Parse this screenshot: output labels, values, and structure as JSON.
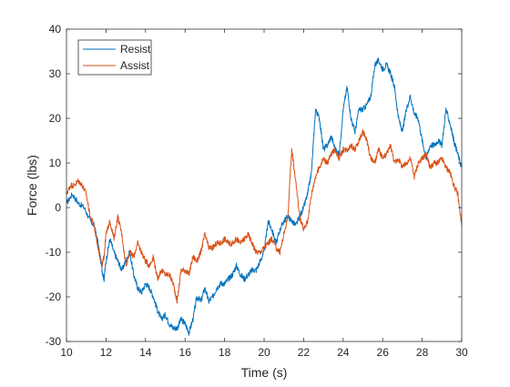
{
  "chart_data": {
    "type": "line",
    "xlabel": "Time (s)",
    "ylabel": "Force (lbs)",
    "xlim": [
      10,
      30
    ],
    "ylim": [
      -30,
      40
    ],
    "xticks": [
      10,
      12,
      14,
      16,
      18,
      20,
      22,
      24,
      26,
      28,
      30
    ],
    "yticks": [
      -30,
      -20,
      -10,
      0,
      10,
      20,
      30,
      40
    ],
    "grid": false,
    "legend": {
      "placement": "top-left"
    },
    "series": [
      {
        "name": "Resist",
        "color": "#0072BD",
        "x": [
          10.0,
          10.3,
          10.6,
          10.9,
          11.2,
          11.4,
          11.6,
          11.8,
          11.9,
          12.0,
          12.2,
          12.4,
          12.6,
          12.8,
          13.0,
          13.2,
          13.4,
          13.6,
          13.8,
          14.0,
          14.2,
          14.4,
          14.6,
          14.8,
          15.0,
          15.2,
          15.4,
          15.6,
          15.8,
          16.0,
          16.2,
          16.4,
          16.6,
          16.8,
          17.0,
          17.2,
          17.4,
          17.6,
          17.8,
          18.0,
          18.2,
          18.4,
          18.6,
          18.8,
          19.0,
          19.2,
          19.4,
          19.6,
          19.8,
          20.0,
          20.2,
          20.4,
          20.6,
          20.8,
          21.0,
          21.2,
          21.4,
          21.6,
          21.8,
          22.0,
          22.2,
          22.4,
          22.6,
          22.8,
          23.0,
          23.2,
          23.4,
          23.6,
          23.8,
          24.0,
          24.2,
          24.4,
          24.6,
          24.8,
          25.0,
          25.2,
          25.4,
          25.6,
          25.8,
          26.0,
          26.2,
          26.4,
          26.6,
          26.8,
          27.0,
          27.2,
          27.4,
          27.6,
          27.8,
          28.0,
          28.2,
          28.4,
          28.6,
          28.8,
          29.0,
          29.2,
          29.4,
          29.6,
          29.8,
          30.0
        ],
        "y": [
          1,
          3,
          1,
          0,
          -3,
          -4,
          -8,
          -14,
          -16,
          -12,
          -7,
          -10,
          -12,
          -14,
          -12,
          -10,
          -15,
          -18,
          -19,
          -17,
          -18,
          -20,
          -23,
          -25,
          -24,
          -26,
          -27,
          -27,
          -25,
          -26,
          -28,
          -25,
          -20,
          -21,
          -18,
          -21,
          -20,
          -18,
          -17,
          -17,
          -16,
          -15,
          -13,
          -15,
          -16,
          -15,
          -14,
          -14,
          -12,
          -10,
          -3,
          -5,
          -8,
          -5,
          -3,
          -2,
          -3,
          -4,
          -2,
          0,
          3,
          8,
          22,
          20,
          13,
          14,
          16,
          13,
          12,
          22,
          27,
          20,
          17,
          22,
          22,
          23,
          25,
          32,
          33,
          31,
          32,
          30,
          27,
          20,
          17,
          22,
          25,
          21,
          20,
          15,
          11,
          14,
          14,
          15,
          14,
          22,
          19,
          15,
          12,
          9
        ]
      },
      {
        "name": "Assist",
        "color": "#D95319",
        "x": [
          10.0,
          10.2,
          10.4,
          10.6,
          10.8,
          11.0,
          11.2,
          11.4,
          11.6,
          11.8,
          11.9,
          12.0,
          12.2,
          12.4,
          12.6,
          12.8,
          13.0,
          13.2,
          13.4,
          13.6,
          13.8,
          14.0,
          14.2,
          14.4,
          14.6,
          14.8,
          15.0,
          15.2,
          15.4,
          15.6,
          15.8,
          16.0,
          16.2,
          16.4,
          16.6,
          16.8,
          17.0,
          17.2,
          17.4,
          17.6,
          17.8,
          18.0,
          18.2,
          18.4,
          18.6,
          18.8,
          19.0,
          19.2,
          19.4,
          19.6,
          19.8,
          20.0,
          20.2,
          20.4,
          20.6,
          20.8,
          21.0,
          21.2,
          21.4,
          21.6,
          21.8,
          22.0,
          22.2,
          22.4,
          22.6,
          22.8,
          23.0,
          23.2,
          23.4,
          23.6,
          23.8,
          24.0,
          24.2,
          24.4,
          24.6,
          24.8,
          25.0,
          25.2,
          25.4,
          25.6,
          25.8,
          26.0,
          26.2,
          26.4,
          26.6,
          26.8,
          27.0,
          27.2,
          27.4,
          27.6,
          27.8,
          28.0,
          28.2,
          28.4,
          28.6,
          28.8,
          29.0,
          29.2,
          29.4,
          29.6,
          29.8,
          30.0
        ],
        "y": [
          3,
          5,
          5,
          6,
          5,
          3,
          -2,
          -4,
          -9,
          -13,
          -11,
          -6,
          -3,
          -7,
          -2,
          -6,
          -13,
          -10,
          -11,
          -8,
          -10,
          -12,
          -13,
          -11,
          -16,
          -14,
          -15,
          -15,
          -17,
          -21,
          -14,
          -14,
          -15,
          -11,
          -12,
          -10,
          -6,
          -9,
          -9,
          -8,
          -8,
          -7,
          -8,
          -8,
          -7,
          -8,
          -7,
          -6,
          -8,
          -10,
          -10,
          -9,
          -8,
          -7,
          -9,
          -10,
          -6,
          -2,
          13,
          6,
          -2,
          -5,
          -3,
          3,
          7,
          9,
          11,
          10,
          12,
          13,
          11,
          13,
          13,
          14,
          13,
          15,
          17,
          15,
          11,
          10,
          13,
          11,
          12,
          14,
          10,
          11,
          9,
          10,
          11,
          7,
          10,
          11,
          12,
          9,
          10,
          10,
          11,
          9,
          8,
          5,
          3,
          -4
        ]
      }
    ]
  }
}
